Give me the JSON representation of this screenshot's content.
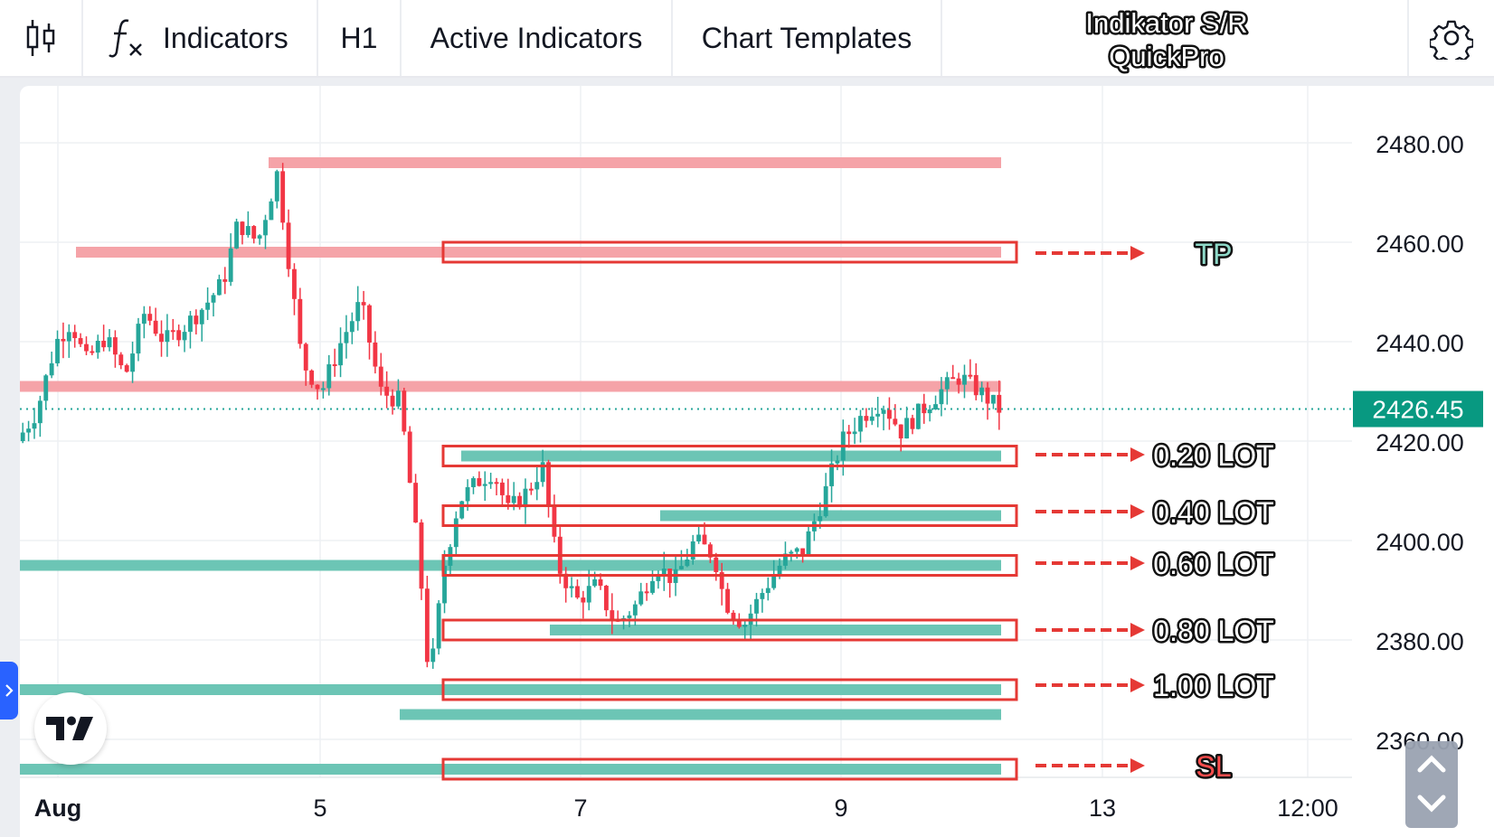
{
  "toolbar": {
    "chart_type_icon": "candlestick-icon",
    "indicators_icon": "function-fx-icon",
    "indicators_label": "Indicators",
    "interval_label": "H1",
    "active_indicators_label": "Active Indicators",
    "chart_templates_label": "Chart Templates",
    "overlay_title_line1": "Indikator S/R",
    "overlay_title_line2": "QuickPro",
    "settings_icon": "gear-icon"
  },
  "chart_data": {
    "type": "candlestick",
    "y_ticks": [
      "2480.00",
      "2460.00",
      "2440.00",
      "2420.00",
      "2400.00",
      "2380.00",
      "2360.00"
    ],
    "x_ticks": [
      "Aug",
      "5",
      "7",
      "9",
      "13",
      "12:00"
    ],
    "ylim": [
      2355,
      2486
    ],
    "last_price": "2426.45",
    "colors": {
      "up": "#26a69a",
      "down": "#f23645",
      "resistance_zone": "#f5a3a8",
      "support_zone": "#6cc5b5",
      "annotation": "#e53935"
    },
    "price_path": [
      [
        0.0,
        2420
      ],
      [
        0.02,
        2426
      ],
      [
        0.04,
        2440
      ],
      [
        0.055,
        2444
      ],
      [
        0.07,
        2436
      ],
      [
        0.09,
        2441
      ],
      [
        0.11,
        2433
      ],
      [
        0.13,
        2446
      ],
      [
        0.15,
        2440
      ],
      [
        0.17,
        2443
      ],
      [
        0.19,
        2447
      ],
      [
        0.21,
        2452
      ],
      [
        0.225,
        2464
      ],
      [
        0.245,
        2460
      ],
      [
        0.265,
        2474
      ],
      [
        0.29,
        2436
      ],
      [
        0.31,
        2430
      ],
      [
        0.33,
        2440
      ],
      [
        0.35,
        2448
      ],
      [
        0.37,
        2430
      ],
      [
        0.39,
        2428
      ],
      [
        0.41,
        2395
      ],
      [
        0.42,
        2371
      ],
      [
        0.435,
        2395
      ],
      [
        0.45,
        2408
      ],
      [
        0.47,
        2412
      ],
      [
        0.485,
        2414
      ],
      [
        0.5,
        2406
      ],
      [
        0.52,
        2410
      ],
      [
        0.535,
        2415
      ],
      [
        0.55,
        2395
      ],
      [
        0.57,
        2388
      ],
      [
        0.59,
        2391
      ],
      [
        0.61,
        2383
      ],
      [
        0.63,
        2387
      ],
      [
        0.65,
        2395
      ],
      [
        0.67,
        2392
      ],
      [
        0.69,
        2400
      ],
      [
        0.71,
        2397
      ],
      [
        0.72,
        2388
      ],
      [
        0.74,
        2383
      ],
      [
        0.76,
        2390
      ],
      [
        0.78,
        2396
      ],
      [
        0.8,
        2398
      ],
      [
        0.82,
        2408
      ],
      [
        0.84,
        2420
      ],
      [
        0.86,
        2425
      ],
      [
        0.88,
        2428
      ],
      [
        0.9,
        2422
      ],
      [
        0.92,
        2426
      ],
      [
        0.94,
        2430
      ],
      [
        0.96,
        2433
      ],
      [
        0.98,
        2430
      ],
      [
        1.0,
        2426.45
      ]
    ],
    "annotations": {
      "tp": "TP",
      "lot_020": "0.20 LOT",
      "lot_040": "0.40 LOT",
      "lot_060": "0.60 LOT",
      "lot_080": "0.80 LOT",
      "lot_100": "1.00 LOT",
      "sl": "SL"
    },
    "resistance_zones": [
      {
        "price": 2476
      },
      {
        "price": 2458
      },
      {
        "price": 2431
      }
    ],
    "support_zones": [
      {
        "price": 2417
      },
      {
        "price": 2405
      },
      {
        "price": 2395
      },
      {
        "price": 2382
      },
      {
        "price": 2370
      },
      {
        "price": 2365
      },
      {
        "price": 2354
      }
    ]
  },
  "side": {
    "expand_tab_icon": "chevron-right-icon",
    "logo_icon": "tradingview-logo-icon",
    "scroll_up_icon": "chevron-up-icon",
    "scroll_down_icon": "chevron-down-icon"
  }
}
